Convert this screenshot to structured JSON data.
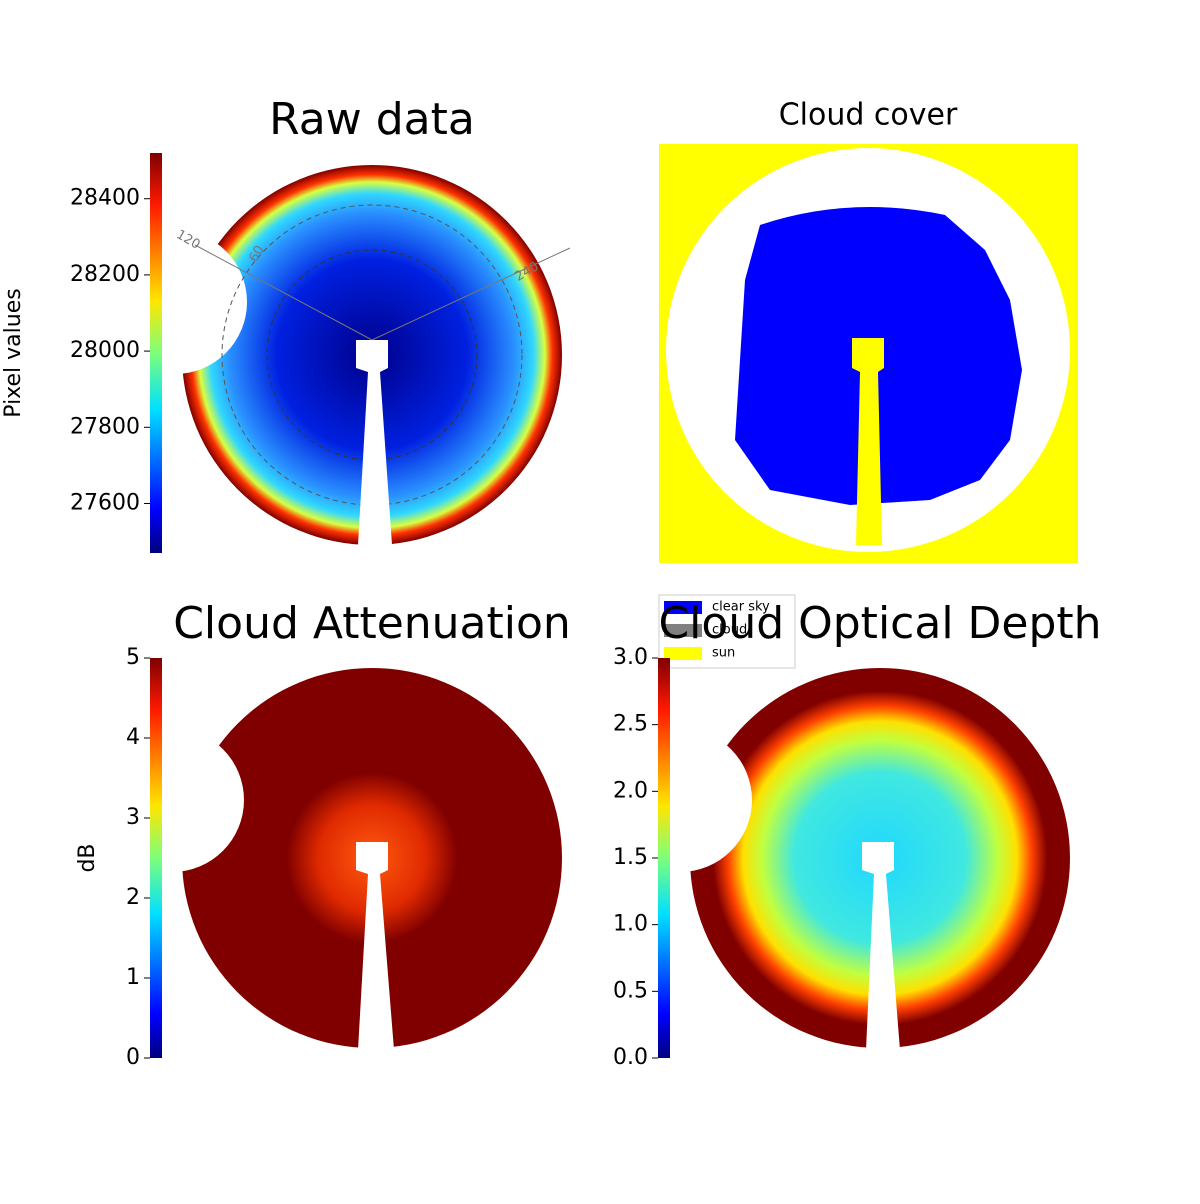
{
  "chart_data": [
    {
      "type": "image",
      "title": "Raw data",
      "colorbar_label": "Pixel values",
      "clim": [
        27470,
        28520
      ],
      "cticks": [
        27600,
        27800,
        28000,
        28200,
        28400
      ],
      "annotations": [
        "120",
        "60",
        "240"
      ]
    },
    {
      "type": "image",
      "title": "Cloud cover",
      "legend": [
        {
          "name": "clear sky",
          "color": "#0000ff"
        },
        {
          "name": "cloud",
          "color": "#808080"
        },
        {
          "name": "sun",
          "color": "#ffff00"
        }
      ]
    },
    {
      "type": "image",
      "title": "Cloud Attenuation",
      "colorbar_label": "dB",
      "clim": [
        0,
        5
      ],
      "cticks": [
        0,
        1,
        2,
        3,
        4,
        5
      ]
    },
    {
      "type": "image",
      "title": "Cloud Optical Depth",
      "clim": [
        0,
        3
      ],
      "cticks": [
        {
          "value": 0,
          "label": "0.0"
        },
        {
          "value": 0.5,
          "label": "0.5"
        },
        {
          "value": 1,
          "label": "1.0"
        },
        {
          "value": 1.5,
          "label": "1.5"
        },
        {
          "value": 2,
          "label": "2.0"
        },
        {
          "value": 2.5,
          "label": "2.5"
        },
        {
          "value": 3,
          "label": "3.0"
        }
      ]
    }
  ]
}
